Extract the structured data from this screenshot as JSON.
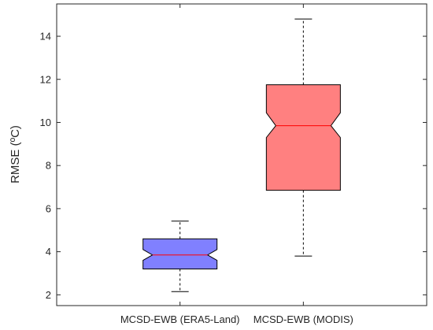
{
  "chart_data": {
    "type": "boxplot",
    "notched": true,
    "ylabel": "RMSE (ºC)",
    "ylim": [
      1.5,
      15.5
    ],
    "yticks": [
      2,
      4,
      6,
      8,
      10,
      12,
      14
    ],
    "grid": false,
    "series": [
      {
        "category": "MCSD-EWB (ERA5-Land)",
        "min": 2.15,
        "q1": 3.2,
        "median": 3.85,
        "q3": 4.6,
        "max": 5.42,
        "notch_low": 3.6,
        "notch_high": 4.1,
        "fill_color": "#8080ff",
        "median_color": "#ff0000"
      },
      {
        "category": "MCSD-EWB (MODIS)",
        "min": 3.8,
        "q1": 6.85,
        "median": 9.85,
        "q3": 11.75,
        "max": 14.8,
        "notch_low": 9.3,
        "notch_high": 10.45,
        "fill_color": "#ff8080",
        "median_color": "#ff0000"
      }
    ]
  }
}
